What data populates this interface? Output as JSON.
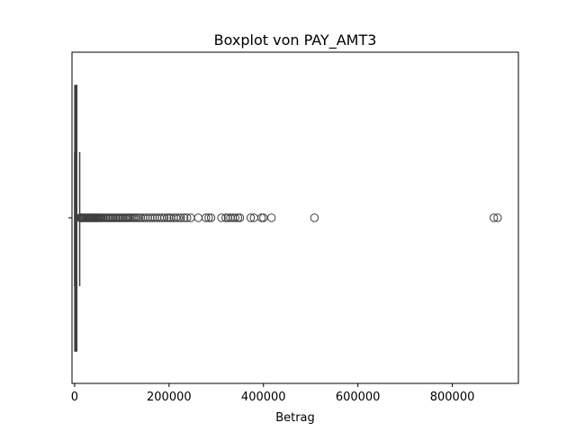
{
  "chart_data": {
    "type": "boxplot",
    "title": "Boxplot von PAY_AMT3",
    "xlabel": "Betrag",
    "ylabel": "",
    "xlim": [
      -5600,
      940000
    ],
    "xticks": [
      0,
      200000,
      400000,
      600000,
      800000
    ],
    "xtick_labels": [
      "0",
      "200000",
      "400000",
      "600000",
      "800000"
    ],
    "grid": false,
    "box": {
      "q1": 390,
      "median": 1800,
      "q3": 4500,
      "whisker_low": 0,
      "whisker_high": 10700
    },
    "outliers": [
      11500,
      12500,
      14000,
      15500,
      17000,
      19000,
      21000,
      23000,
      25000,
      27000,
      29000,
      31000,
      33000,
      35000,
      37000,
      39000,
      41000,
      43000,
      45000,
      47000,
      49000,
      51000,
      53000,
      55000,
      57000,
      60000,
      63000,
      66000,
      69000,
      72000,
      75000,
      78000,
      81000,
      84000,
      87000,
      90000,
      93000,
      96000,
      99000,
      102000,
      105000,
      108000,
      111000,
      114000,
      117000,
      120000,
      124000,
      128000,
      132000,
      136000,
      140000,
      145000,
      150000,
      155000,
      160000,
      165000,
      170000,
      175000,
      180000,
      185000,
      190000,
      196000,
      200000,
      204000,
      210000,
      215000,
      220000,
      225000,
      232000,
      238000,
      246000,
      262000,
      278000,
      284000,
      289000,
      311000,
      320000,
      325000,
      330000,
      335000,
      340000,
      346000,
      350000,
      373000,
      380000,
      396000,
      400000,
      417000,
      508000,
      888000,
      896000
    ],
    "colors": {
      "box_fill": "#3a6ea5",
      "line": "#3f3f3f",
      "outlier_edge": "#3f3f3f"
    }
  }
}
